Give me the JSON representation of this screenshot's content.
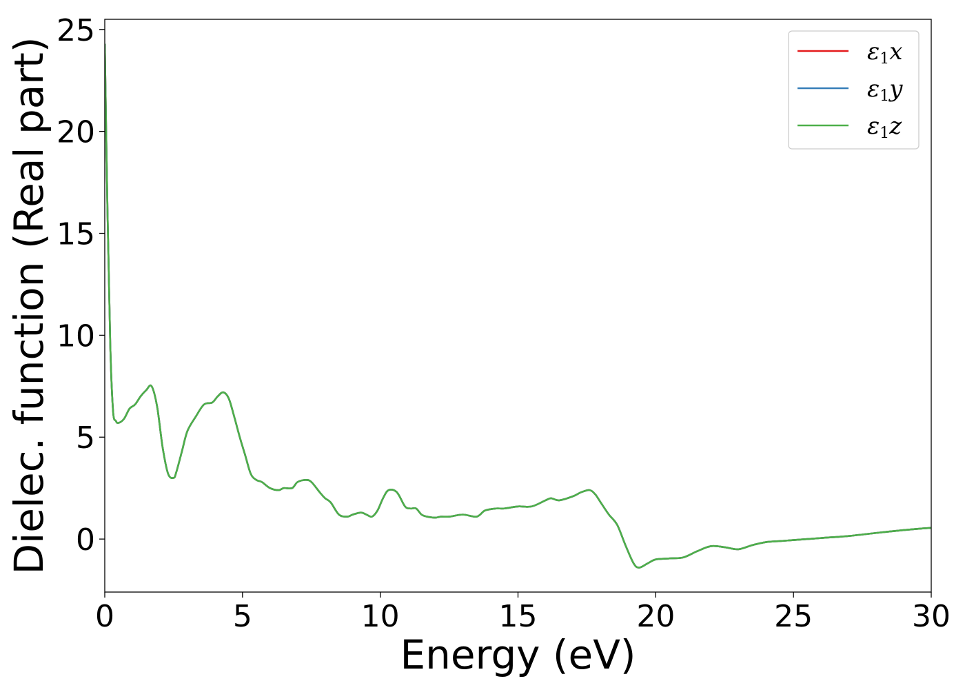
{
  "chart_data": {
    "type": "line",
    "title": "",
    "xlabel": "Energy (eV)",
    "ylabel": "Dielec. function (Real part)",
    "xlim": [
      0,
      30
    ],
    "ylim": [
      -2.6,
      25.5
    ],
    "xticks": [
      0,
      5,
      10,
      15,
      20,
      25,
      30
    ],
    "xtick_labels": [
      "0",
      "5",
      "10",
      "15",
      "20",
      "25",
      "30"
    ],
    "yticks": [
      0,
      5,
      10,
      15,
      20,
      25
    ],
    "ytick_labels": [
      "0",
      "5",
      "10",
      "15",
      "20",
      "25"
    ],
    "grid": false,
    "legend_position": "top-right",
    "series": [
      {
        "name_main": "ε",
        "name_sub": "1",
        "name_suffix": "x",
        "color": "#e41a1c",
        "x": [
          0.0,
          0.1,
          0.2,
          0.3,
          0.4,
          0.5,
          0.7,
          0.9,
          1.1,
          1.3,
          1.5,
          1.7,
          1.9,
          2.1,
          2.3,
          2.5,
          2.6,
          2.8,
          3.0,
          3.3,
          3.6,
          3.9,
          4.1,
          4.3,
          4.5,
          4.7,
          4.9,
          5.1,
          5.3,
          5.5,
          5.7,
          6.0,
          6.3,
          6.5,
          6.8,
          7.0,
          7.3,
          7.5,
          7.8,
          8.0,
          8.2,
          8.5,
          8.8,
          9.0,
          9.3,
          9.5,
          9.7,
          9.9,
          10.1,
          10.3,
          10.6,
          10.9,
          11.1,
          11.3,
          11.5,
          11.7,
          12.0,
          12.2,
          12.5,
          13.0,
          13.5,
          13.8,
          14.2,
          14.5,
          15.0,
          15.5,
          16.0,
          16.2,
          16.5,
          17.0,
          17.3,
          17.6,
          17.8,
          18.0,
          18.3,
          18.6,
          18.9,
          19.2,
          19.4,
          19.7,
          20.0,
          20.5,
          21.0,
          21.5,
          22.0,
          22.5,
          23.0,
          23.5,
          24.0,
          24.5,
          25.0,
          26.0,
          27.0,
          28.0,
          28.7,
          29.5,
          30.0
        ],
        "values": [
          24.3,
          16.0,
          9.5,
          6.3,
          5.8,
          5.7,
          5.9,
          6.4,
          6.6,
          7.0,
          7.3,
          7.5,
          6.5,
          4.5,
          3.2,
          3.0,
          3.3,
          4.3,
          5.3,
          6.0,
          6.6,
          6.7,
          7.0,
          7.2,
          6.9,
          6.0,
          5.0,
          4.1,
          3.2,
          2.9,
          2.8,
          2.5,
          2.4,
          2.5,
          2.5,
          2.8,
          2.9,
          2.8,
          2.3,
          2.0,
          1.8,
          1.2,
          1.1,
          1.2,
          1.3,
          1.2,
          1.1,
          1.4,
          2.0,
          2.4,
          2.3,
          1.6,
          1.5,
          1.5,
          1.2,
          1.1,
          1.05,
          1.1,
          1.1,
          1.2,
          1.1,
          1.4,
          1.5,
          1.5,
          1.6,
          1.6,
          1.9,
          2.0,
          1.9,
          2.1,
          2.3,
          2.4,
          2.2,
          1.8,
          1.2,
          0.7,
          -0.3,
          -1.2,
          -1.4,
          -1.2,
          -1.0,
          -0.95,
          -0.9,
          -0.6,
          -0.35,
          -0.4,
          -0.5,
          -0.3,
          -0.15,
          -0.1,
          -0.05,
          0.05,
          0.15,
          0.3,
          0.4,
          0.5,
          0.55
        ]
      },
      {
        "name_main": "ε",
        "name_sub": "1",
        "name_suffix": "y",
        "color": "#377eb8",
        "x": [
          0.0,
          0.1,
          0.2,
          0.3,
          0.4,
          0.5,
          0.7,
          0.9,
          1.1,
          1.3,
          1.5,
          1.7,
          1.9,
          2.1,
          2.3,
          2.5,
          2.6,
          2.8,
          3.0,
          3.3,
          3.6,
          3.9,
          4.1,
          4.3,
          4.5,
          4.7,
          4.9,
          5.1,
          5.3,
          5.5,
          5.7,
          6.0,
          6.3,
          6.5,
          6.8,
          7.0,
          7.3,
          7.5,
          7.8,
          8.0,
          8.2,
          8.5,
          8.8,
          9.0,
          9.3,
          9.5,
          9.7,
          9.9,
          10.1,
          10.3,
          10.6,
          10.9,
          11.1,
          11.3,
          11.5,
          11.7,
          12.0,
          12.2,
          12.5,
          13.0,
          13.5,
          13.8,
          14.2,
          14.5,
          15.0,
          15.5,
          16.0,
          16.2,
          16.5,
          17.0,
          17.3,
          17.6,
          17.8,
          18.0,
          18.3,
          18.6,
          18.9,
          19.2,
          19.4,
          19.7,
          20.0,
          20.5,
          21.0,
          21.5,
          22.0,
          22.5,
          23.0,
          23.5,
          24.0,
          24.5,
          25.0,
          26.0,
          27.0,
          28.0,
          28.7,
          29.5,
          30.0
        ],
        "values": [
          24.3,
          16.0,
          9.5,
          6.3,
          5.8,
          5.7,
          5.9,
          6.4,
          6.6,
          7.0,
          7.3,
          7.5,
          6.5,
          4.5,
          3.2,
          3.0,
          3.3,
          4.3,
          5.3,
          6.0,
          6.6,
          6.7,
          7.0,
          7.2,
          6.9,
          6.0,
          5.0,
          4.1,
          3.2,
          2.9,
          2.8,
          2.5,
          2.4,
          2.5,
          2.5,
          2.8,
          2.9,
          2.8,
          2.3,
          2.0,
          1.8,
          1.2,
          1.1,
          1.2,
          1.3,
          1.2,
          1.1,
          1.4,
          2.0,
          2.4,
          2.3,
          1.6,
          1.5,
          1.5,
          1.2,
          1.1,
          1.05,
          1.1,
          1.1,
          1.2,
          1.1,
          1.4,
          1.5,
          1.5,
          1.6,
          1.6,
          1.9,
          2.0,
          1.9,
          2.1,
          2.3,
          2.4,
          2.2,
          1.8,
          1.2,
          0.7,
          -0.3,
          -1.2,
          -1.4,
          -1.2,
          -1.0,
          -0.95,
          -0.9,
          -0.6,
          -0.35,
          -0.4,
          -0.5,
          -0.3,
          -0.15,
          -0.1,
          -0.05,
          0.05,
          0.15,
          0.3,
          0.4,
          0.5,
          0.55
        ]
      },
      {
        "name_main": "ε",
        "name_sub": "1",
        "name_suffix": "z",
        "color": "#4daf4a",
        "x": [
          0.0,
          0.1,
          0.2,
          0.3,
          0.4,
          0.5,
          0.7,
          0.9,
          1.1,
          1.3,
          1.5,
          1.7,
          1.9,
          2.1,
          2.3,
          2.5,
          2.6,
          2.8,
          3.0,
          3.3,
          3.6,
          3.9,
          4.1,
          4.3,
          4.5,
          4.7,
          4.9,
          5.1,
          5.3,
          5.5,
          5.7,
          6.0,
          6.3,
          6.5,
          6.8,
          7.0,
          7.3,
          7.5,
          7.8,
          8.0,
          8.2,
          8.5,
          8.8,
          9.0,
          9.3,
          9.5,
          9.7,
          9.9,
          10.1,
          10.3,
          10.6,
          10.9,
          11.1,
          11.3,
          11.5,
          11.7,
          12.0,
          12.2,
          12.5,
          13.0,
          13.5,
          13.8,
          14.2,
          14.5,
          15.0,
          15.5,
          16.0,
          16.2,
          16.5,
          17.0,
          17.3,
          17.6,
          17.8,
          18.0,
          18.3,
          18.6,
          18.9,
          19.2,
          19.4,
          19.7,
          20.0,
          20.5,
          21.0,
          21.5,
          22.0,
          22.5,
          23.0,
          23.5,
          24.0,
          24.5,
          25.0,
          26.0,
          27.0,
          28.0,
          28.7,
          29.5,
          30.0
        ],
        "values": [
          24.3,
          16.0,
          9.5,
          6.3,
          5.8,
          5.7,
          5.9,
          6.4,
          6.6,
          7.0,
          7.3,
          7.5,
          6.5,
          4.5,
          3.2,
          3.0,
          3.3,
          4.3,
          5.3,
          6.0,
          6.6,
          6.7,
          7.0,
          7.2,
          6.9,
          6.0,
          5.0,
          4.1,
          3.2,
          2.9,
          2.8,
          2.5,
          2.4,
          2.5,
          2.5,
          2.8,
          2.9,
          2.8,
          2.3,
          2.0,
          1.8,
          1.2,
          1.1,
          1.2,
          1.3,
          1.2,
          1.1,
          1.4,
          2.0,
          2.4,
          2.3,
          1.6,
          1.5,
          1.5,
          1.2,
          1.1,
          1.05,
          1.1,
          1.1,
          1.2,
          1.1,
          1.4,
          1.5,
          1.5,
          1.6,
          1.6,
          1.9,
          2.0,
          1.9,
          2.1,
          2.3,
          2.4,
          2.2,
          1.8,
          1.2,
          0.7,
          -0.3,
          -1.2,
          -1.4,
          -1.2,
          -1.0,
          -0.95,
          -0.9,
          -0.6,
          -0.35,
          -0.4,
          -0.5,
          -0.3,
          -0.15,
          -0.1,
          -0.05,
          0.05,
          0.15,
          0.3,
          0.4,
          0.5,
          0.55
        ]
      }
    ]
  }
}
